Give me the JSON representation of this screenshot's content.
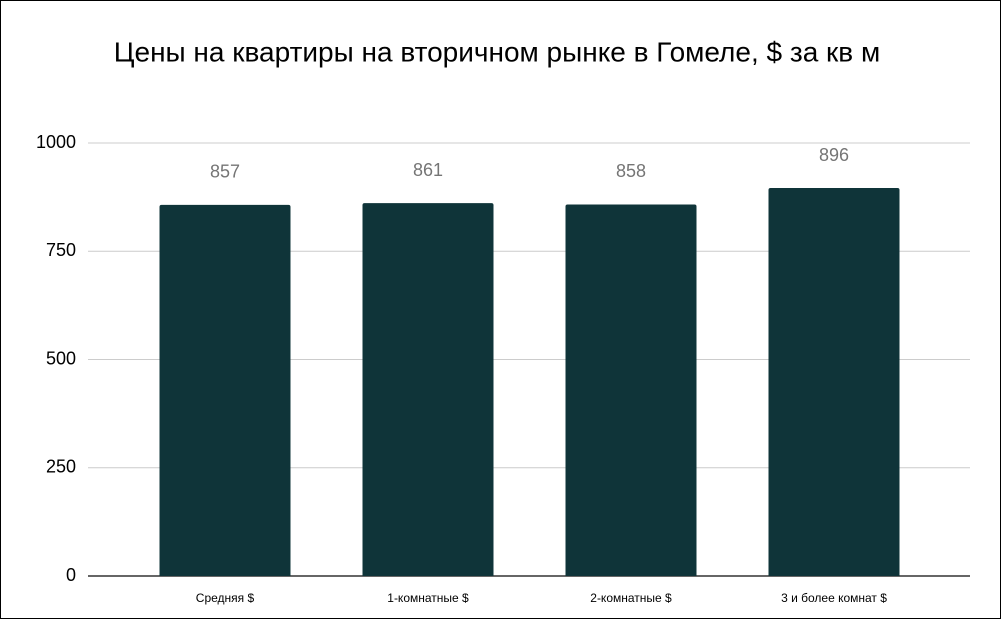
{
  "chart_data": {
    "type": "bar",
    "title": "Цены на квартиры на вторичном рынке в Гомеле, $ за кв м",
    "categories": [
      "Средняя $",
      "1-комнатные $",
      "2-комнатные $",
      "3 и более комнат $"
    ],
    "values": [
      857,
      861,
      858,
      896
    ],
    "color": "#0f3439",
    "ylim": [
      0,
      1000
    ],
    "yticks": [
      0,
      250,
      500,
      750,
      1000
    ],
    "grid": true
  }
}
